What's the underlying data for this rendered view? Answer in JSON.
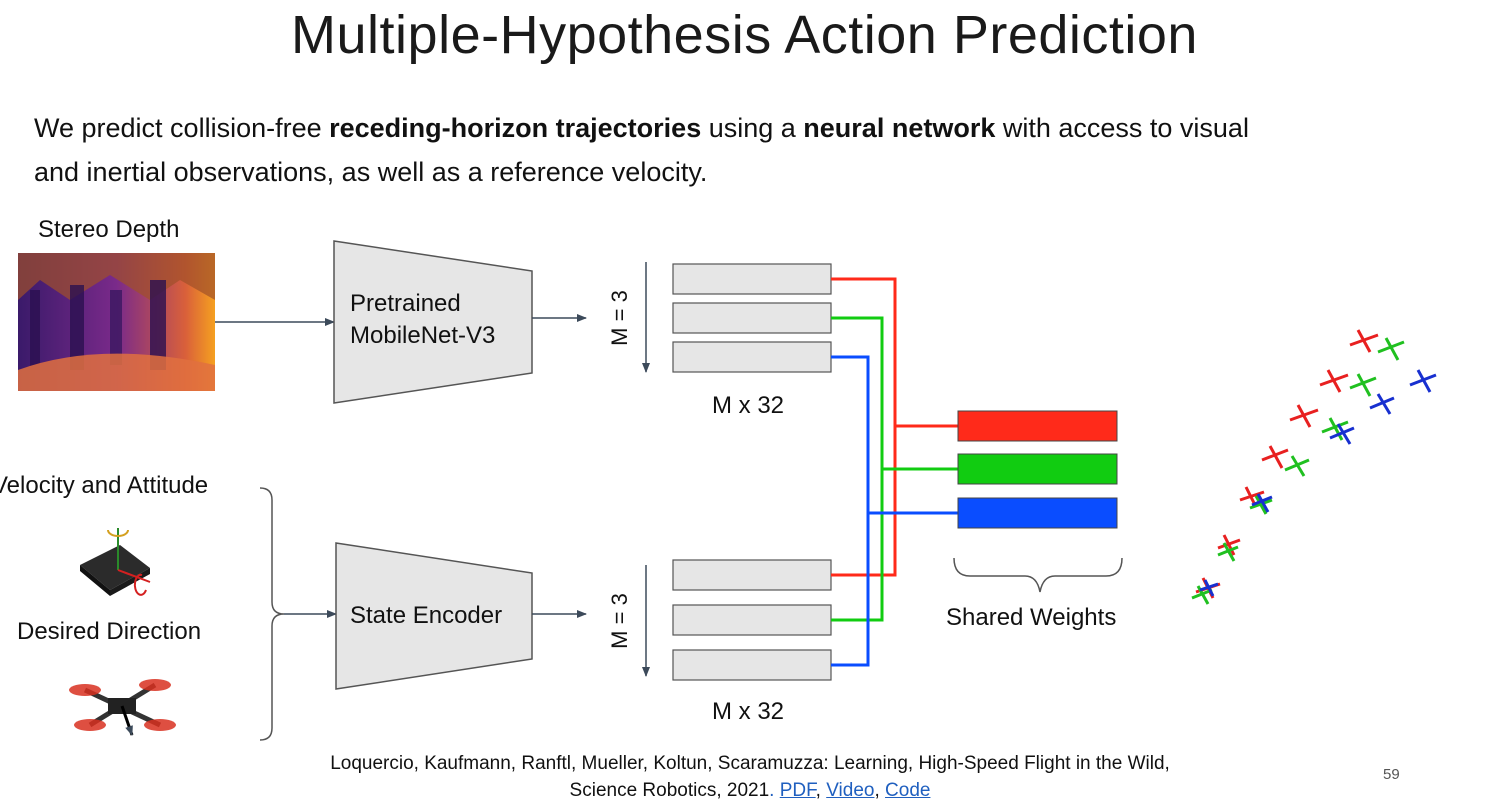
{
  "title": "Multiple-Hypothesis Action Prediction",
  "intro": {
    "part1": "We predict collision-free ",
    "bold1": "receding-horizon trajectories",
    "part2": " using a ",
    "bold2": "neural network",
    "part3": " with access to visual",
    "line2": "and inertial observations, as well as a reference velocity."
  },
  "inputs": {
    "stereo_depth": "Stereo Depth",
    "velocity_attitude": "Velocity and Attitude",
    "desired_direction": "Desired Direction"
  },
  "encoders": {
    "top_line1": "Pretrained",
    "top_line2": "MobileNet-V3",
    "bottom": "State Encoder"
  },
  "features": {
    "m_label": "M = 3",
    "size_label": "M x 32"
  },
  "shared_weights": "Shared Weights",
  "colors": {
    "red": "#ff2a1a",
    "green": "#11cc11",
    "blue": "#0a4dff",
    "box_fill": "#e6e6e6",
    "box_stroke": "#555555"
  },
  "citation": {
    "line1": "Loquercio, Kaufmann, Ranftl, Mueller, Koltun, Scaramuzza: Learning, High-Speed Flight in the Wild,",
    "line2_text": "Science Robotics, 2021",
    "dot": ". ",
    "link_pdf": "PDF",
    "link_video": "Video",
    "link_code": "Code",
    "sep": ", "
  },
  "page_number": "59"
}
